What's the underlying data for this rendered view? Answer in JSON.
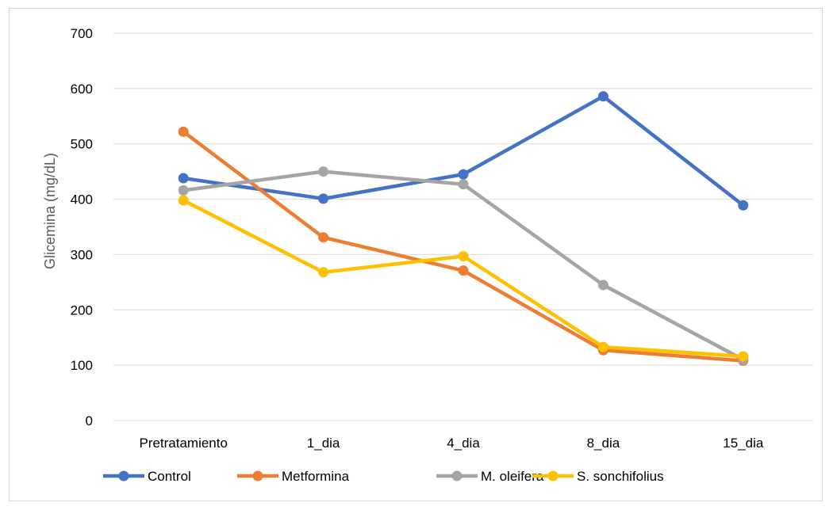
{
  "chart_data": {
    "type": "line",
    "title": "",
    "xlabel": "",
    "ylabel": "Glicemina (mg/dL)",
    "categories": [
      "Pretratamiento",
      "1_dia",
      "4_dia",
      "8_dia",
      "15_dia"
    ],
    "ylim": [
      0,
      700
    ],
    "yticks": [
      0,
      100,
      200,
      300,
      400,
      500,
      600,
      700
    ],
    "grid": true,
    "legend_position": "bottom",
    "series": [
      {
        "name": "Control",
        "color": "#4472c4",
        "values": [
          438,
          401,
          445,
          586,
          389
        ]
      },
      {
        "name": "Metformina",
        "color": "#ed7d31",
        "values": [
          522,
          331,
          271,
          127,
          108
        ]
      },
      {
        "name": "M. oleifera",
        "color": "#a5a5a5",
        "values": [
          416,
          450,
          427,
          245,
          110
        ]
      },
      {
        "name": "S. sonchifolius",
        "color": "#ffc000",
        "values": [
          398,
          268,
          297,
          133,
          116
        ]
      }
    ]
  }
}
